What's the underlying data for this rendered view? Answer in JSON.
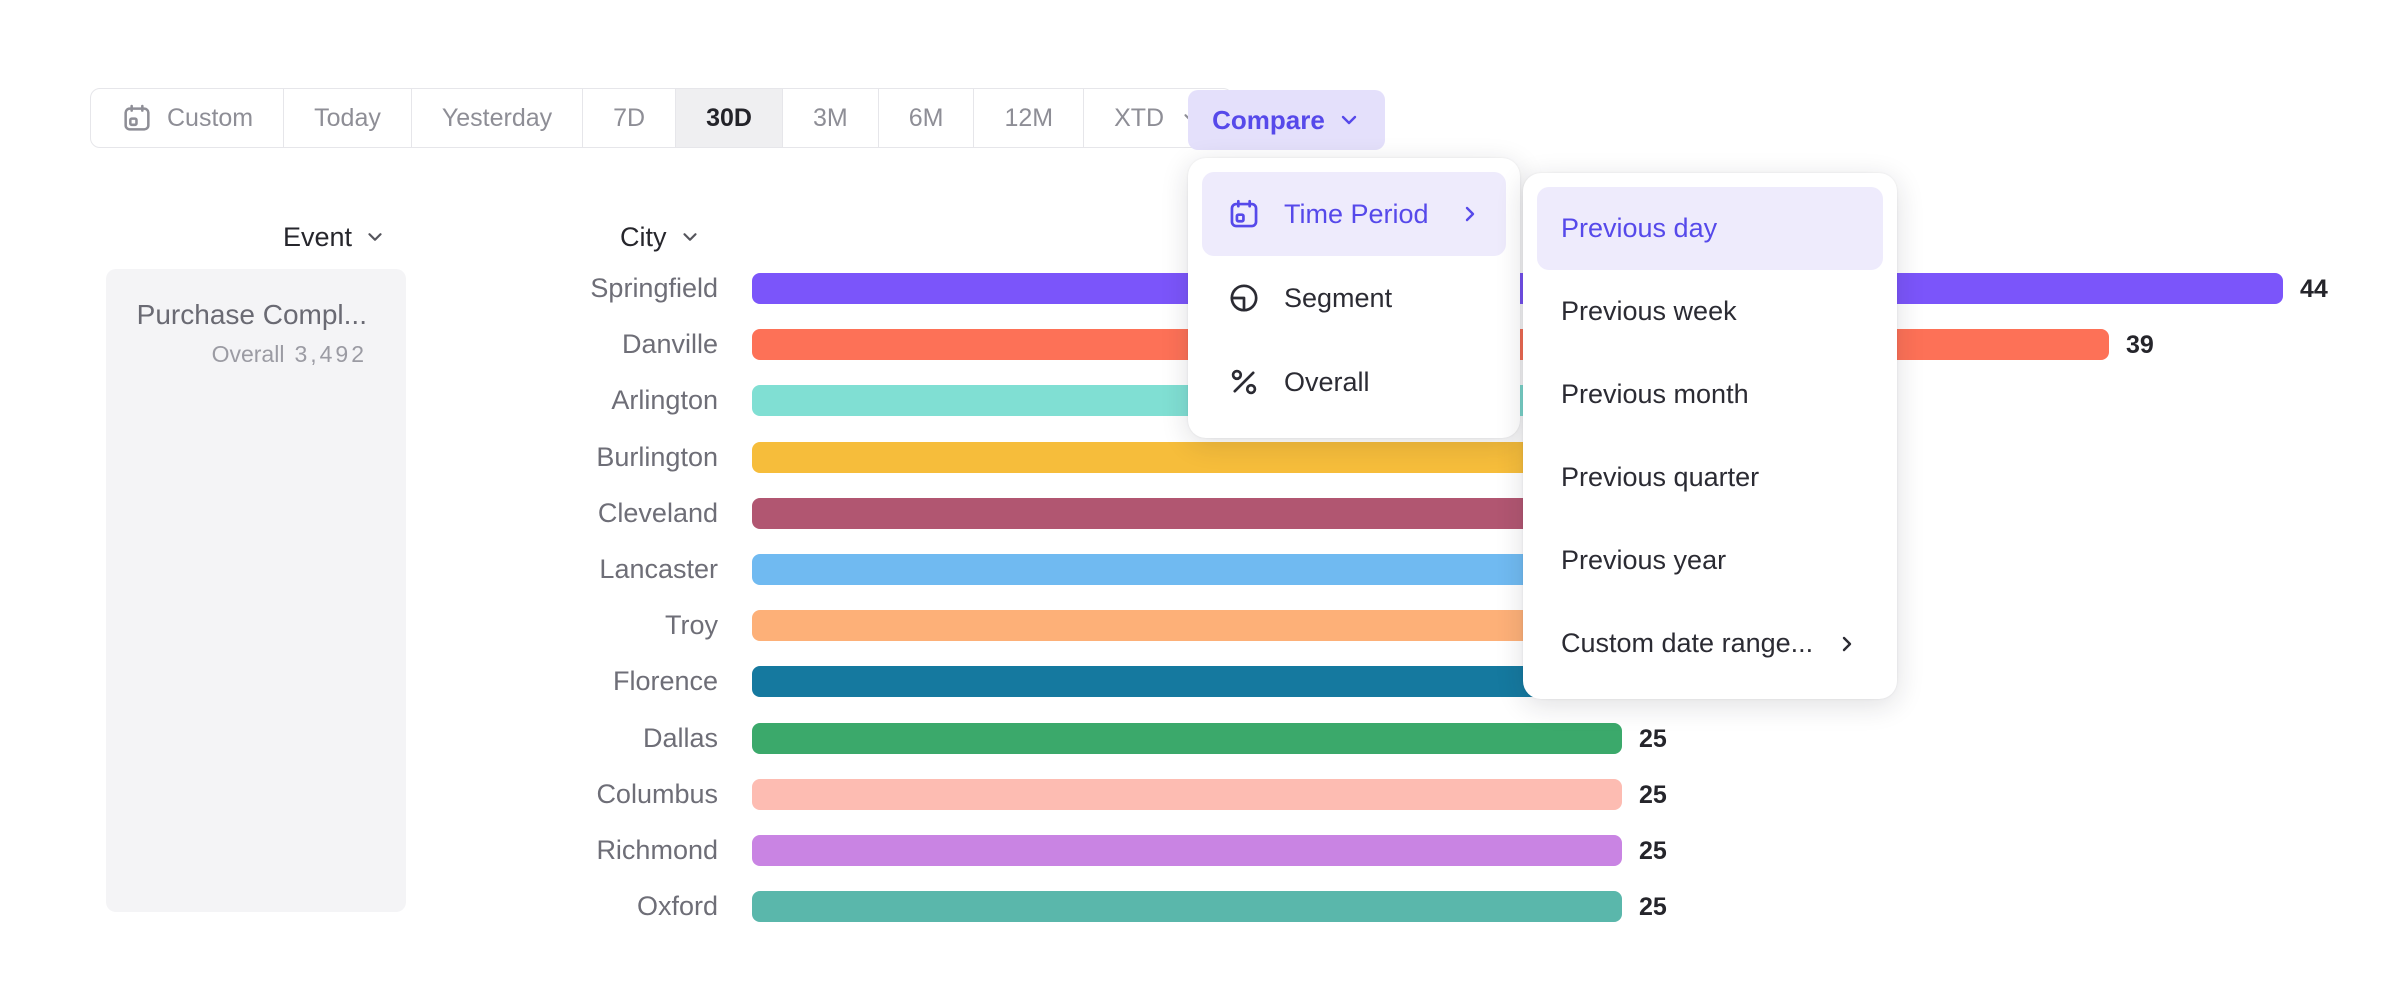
{
  "toolbar": {
    "date_ranges": [
      {
        "label": "Custom",
        "icon": "calendar",
        "selected": false
      },
      {
        "label": "Today",
        "selected": false
      },
      {
        "label": "Yesterday",
        "selected": false
      },
      {
        "label": "7D",
        "selected": false
      },
      {
        "label": "30D",
        "selected": true
      },
      {
        "label": "3M",
        "selected": false
      },
      {
        "label": "6M",
        "selected": false
      },
      {
        "label": "12M",
        "selected": false
      },
      {
        "label": "XTD",
        "selected": false,
        "chevron": true
      }
    ],
    "compare_label": "Compare"
  },
  "compare_menu": {
    "items": [
      {
        "label": "Time Period",
        "icon": "calendar",
        "highlighted": true,
        "chevron": true
      },
      {
        "label": "Segment",
        "icon": "segment",
        "highlighted": false
      },
      {
        "label": "Overall",
        "icon": "percent",
        "highlighted": false
      }
    ]
  },
  "time_period_submenu": {
    "items": [
      {
        "label": "Previous day",
        "highlighted": true
      },
      {
        "label": "Previous week",
        "highlighted": false
      },
      {
        "label": "Previous month",
        "highlighted": false
      },
      {
        "label": "Previous quarter",
        "highlighted": false
      },
      {
        "label": "Previous year",
        "highlighted": false
      },
      {
        "label": "Custom date range...",
        "highlighted": false,
        "chevron": true
      }
    ]
  },
  "event_column": {
    "header": "Event",
    "event_name": "Purchase Compl...",
    "overall_label": "Overall",
    "overall_value": "3,492"
  },
  "chart_data": {
    "type": "bar",
    "orientation": "horizontal",
    "group_header": "City",
    "categories": [
      "Springfield",
      "Danville",
      "Arlington",
      "Burlington",
      "Cleveland",
      "Lancaster",
      "Troy",
      "Florence",
      "Dallas",
      "Columbus",
      "Richmond",
      "Oxford"
    ],
    "values": [
      44,
      39,
      null,
      null,
      null,
      null,
      null,
      null,
      25,
      25,
      25,
      25
    ],
    "value_labels_visible": [
      true,
      true,
      false,
      false,
      false,
      false,
      false,
      false,
      true,
      true,
      true,
      true
    ],
    "render_value_estimates": [
      44,
      39,
      32,
      31,
      30,
      29,
      28,
      27,
      25,
      25,
      25,
      25
    ],
    "bar_colors": [
      "#7b55fa",
      "#fd7157",
      "#80dfd3",
      "#f6bd3b",
      "#b15671",
      "#70baf1",
      "#fdb078",
      "#15799f",
      "#3ba96b",
      "#fdbcb2",
      "#c984e3",
      "#5ab7ab"
    ],
    "note": "null values are occluded by the open Compare dropdown and Time Period submenu",
    "xlabel": "",
    "ylabel": "",
    "grid": false,
    "legend": false
  },
  "colors": {
    "accent_purple": "#5649ea",
    "accent_purple_bg": "#e4e0fb",
    "menu_highlight_bg": "#eeebfc",
    "selected_range_bg": "#efeff1",
    "panel_bg": "#f4f4f6",
    "toolbar_text": "#8e8e96",
    "value_text": "#25252b"
  }
}
